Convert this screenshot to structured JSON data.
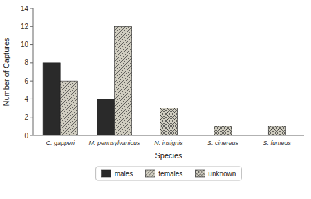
{
  "chart_data": {
    "type": "bar",
    "xlabel": "Species",
    "ylabel": "Number of Captures",
    "categories": [
      "C. gapperi",
      "M. pennsylvanicus",
      "N. insignis",
      "S. cinereus",
      "S. fumeus"
    ],
    "series": [
      {
        "name": "males",
        "color": "#2a2a2a",
        "values": [
          8,
          4,
          0,
          0,
          0
        ]
      },
      {
        "name": "females",
        "color": "#d0cdc0",
        "values": [
          6,
          12,
          0,
          0,
          0
        ]
      },
      {
        "name": "unknown",
        "color": "#d0cdc0",
        "values": [
          0,
          0,
          3,
          1,
          1
        ]
      }
    ],
    "ylim": [
      0,
      14
    ],
    "yticks": [
      0,
      2,
      4,
      6,
      8,
      10,
      12,
      14
    ],
    "grid": false,
    "legend": "bottom"
  }
}
